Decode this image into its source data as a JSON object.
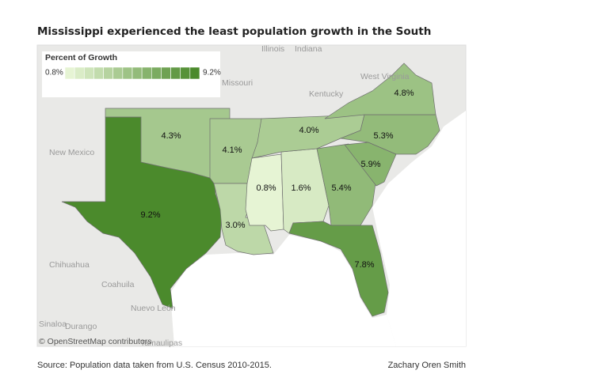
{
  "chart_data": {
    "type": "choropleth",
    "title": "Mississippi experienced the least population growth in the South",
    "legend": {
      "title": "Percent of Growth",
      "min": {
        "value": 0.8,
        "label": "0.8%"
      },
      "max": {
        "value": 9.2,
        "label": "9.2%"
      },
      "colors": [
        "#e6f4d4",
        "#4b8a2c"
      ]
    },
    "values": [
      9.2,
      4.3,
      4.1,
      3.0,
      0.8,
      1.6,
      4.0,
      5.4,
      7.8,
      5.9,
      5.3,
      4.8
    ],
    "value_labels": [
      "9.2%",
      "4.3%",
      "4.1%",
      "3.0%",
      "0.8%",
      "1.6%",
      "4.0%",
      "5.4%",
      "7.8%",
      "5.9%",
      "5.3%",
      "4.8%"
    ],
    "basemap_labels": [
      "Illinois",
      "Indiana",
      "Missouri",
      "Kentucky",
      "West Virginia",
      "New Mexico",
      "Chihuahua",
      "Coahuila",
      "Nuevo León",
      "Sinaloa",
      "Durango",
      "Tamaulipas"
    ],
    "attribution": "© OpenStreetMap contributors",
    "source": "Source: Population data taken from U.S. Census 2010-2015.",
    "author": "Zachary Oren Smith"
  }
}
